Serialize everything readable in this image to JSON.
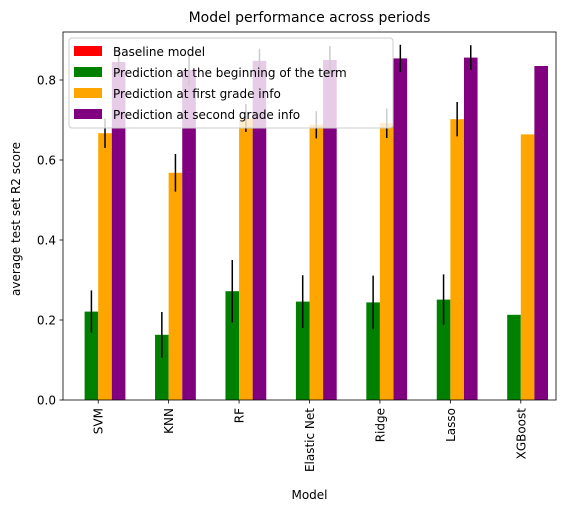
{
  "chart_data": {
    "type": "bar",
    "title": "Model performance across periods",
    "xlabel": "Model",
    "ylabel": "average test set R2 score",
    "ylim": [
      0,
      0.92
    ],
    "yticks": [
      0.0,
      0.2,
      0.4,
      0.6,
      0.8
    ],
    "ytick_labels": [
      "0.0",
      "0.2",
      "0.4",
      "0.6",
      "0.8"
    ],
    "categories": [
      "SVM",
      "KNN",
      "RF",
      "Elastic Net",
      "Ridge",
      "Lasso",
      "XGBoost"
    ],
    "legend_position": "top-left",
    "grid": false,
    "series": [
      {
        "name": "Baseline model",
        "color": "#ff0000",
        "values": [
          0,
          0,
          0,
          0,
          0,
          0,
          0
        ],
        "errors": [
          0,
          0,
          0,
          0,
          0,
          0,
          0
        ]
      },
      {
        "name": "Prediction at the beginning of the term",
        "color": "#008000",
        "values": [
          0.221,
          0.163,
          0.272,
          0.246,
          0.244,
          0.251,
          0.213
        ],
        "errors": [
          0.053,
          0.057,
          0.078,
          0.066,
          0.067,
          0.063,
          0
        ]
      },
      {
        "name": "Prediction at first grade info",
        "color": "#ffa500",
        "values": [
          0.667,
          0.568,
          0.705,
          0.688,
          0.692,
          0.702,
          0.664
        ],
        "errors": [
          0.037,
          0.047,
          0.035,
          0.034,
          0.037,
          0.043,
          0
        ]
      },
      {
        "name": "Prediction at second grade info",
        "color": "#800080",
        "values": [
          0.845,
          0.825,
          0.848,
          0.85,
          0.854,
          0.856,
          0.835
        ],
        "errors": [
          0.035,
          0.039,
          0.03,
          0.035,
          0.034,
          0.031,
          0
        ]
      }
    ]
  }
}
